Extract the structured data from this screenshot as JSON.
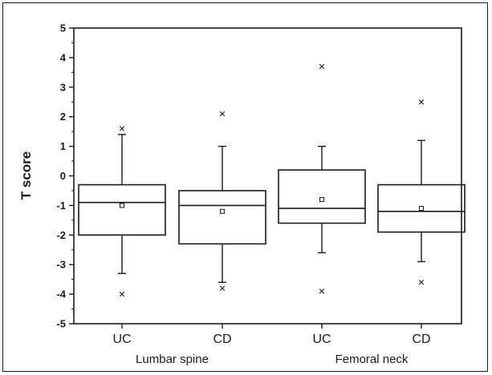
{
  "chart_data": {
    "type": "box",
    "ylabel": "T score",
    "xlabel": "",
    "ylim": [
      -5,
      5
    ],
    "yticks": [
      5,
      4,
      3,
      2,
      1,
      0,
      -1,
      -2,
      -3,
      -4,
      -5
    ],
    "ytick_labels": [
      "5",
      "4",
      "3",
      "2",
      "1",
      "0",
      "-1",
      "-2",
      "-3",
      "-4",
      "-5"
    ],
    "categories": [
      "UC",
      "CD",
      "UC",
      "CD"
    ],
    "groups": [
      {
        "label": "Lumbar spine",
        "categories": [
          0,
          1
        ]
      },
      {
        "label": "Femoral neck",
        "categories": [
          2,
          3
        ]
      }
    ],
    "boxes": [
      {
        "category": "UC",
        "group": "Lumbar spine",
        "whisker_low": -3.3,
        "q1": -2.0,
        "median": -0.9,
        "q3": -0.3,
        "whisker_high": 1.4,
        "mean": -1.0,
        "outliers": [
          1.6,
          -4.0
        ]
      },
      {
        "category": "CD",
        "group": "Lumbar spine",
        "whisker_low": -3.6,
        "q1": -2.3,
        "median": -1.0,
        "q3": -0.5,
        "whisker_high": 1.0,
        "mean": -1.2,
        "outliers": [
          2.1,
          -3.8
        ]
      },
      {
        "category": "UC",
        "group": "Femoral neck",
        "whisker_low": -2.6,
        "q1": -1.6,
        "median": -1.1,
        "q3": 0.2,
        "whisker_high": 1.0,
        "mean": -0.8,
        "outliers": [
          3.7,
          -3.9
        ]
      },
      {
        "category": "CD",
        "group": "Femoral neck",
        "whisker_low": -2.9,
        "q1": -1.9,
        "median": -1.2,
        "q3": -0.3,
        "whisker_high": 1.2,
        "mean": -1.1,
        "outliers": [
          2.5,
          -3.6
        ]
      }
    ],
    "grid": false,
    "legend": "none",
    "colors": {
      "line": "#1a1a1a",
      "background": "#ffffff"
    }
  }
}
